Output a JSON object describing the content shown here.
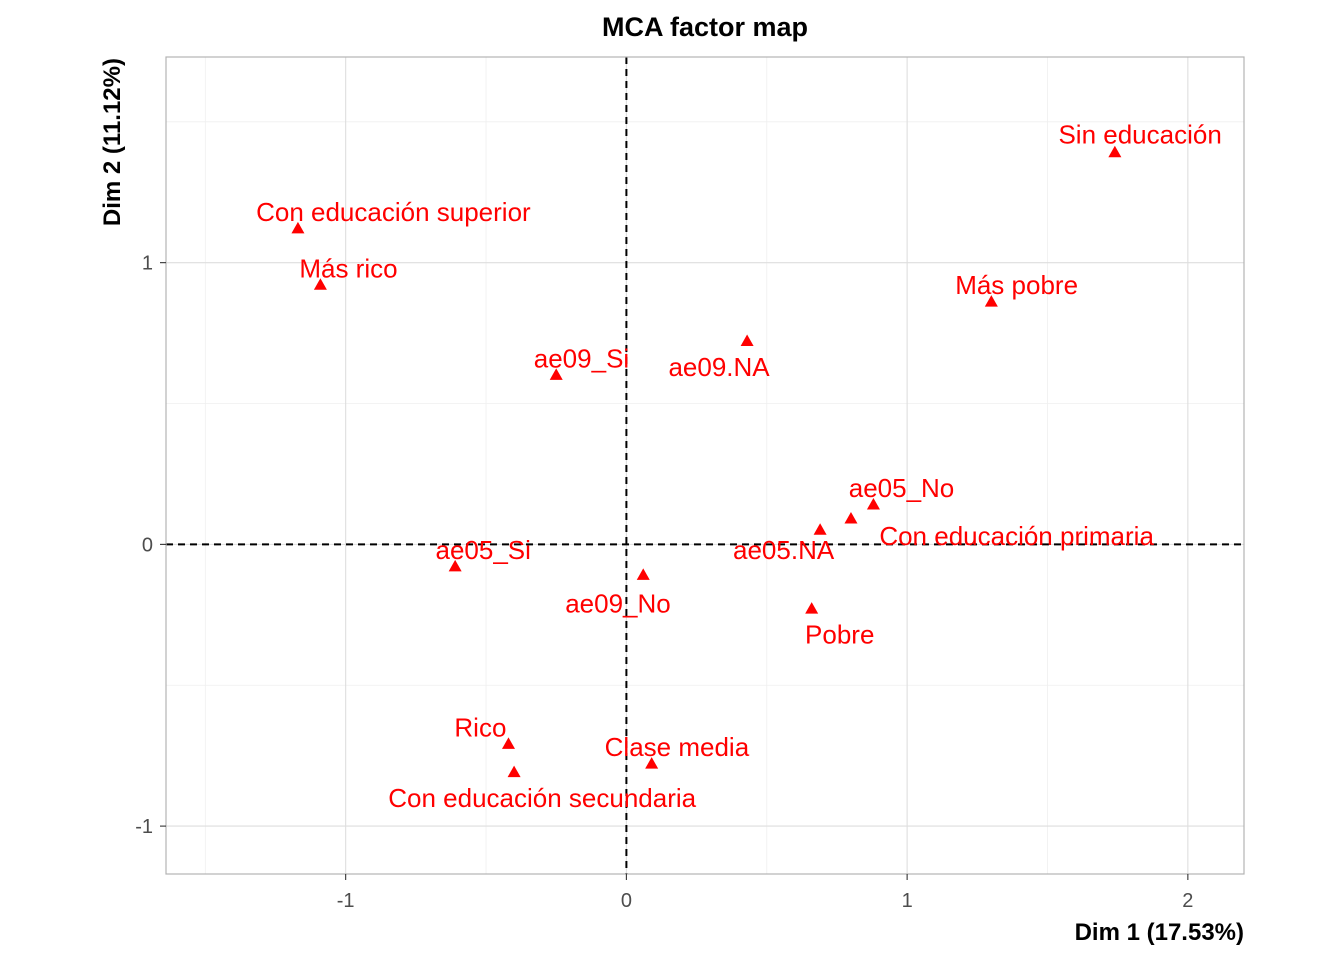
{
  "chart_data": {
    "type": "scatter",
    "title": "MCA factor map",
    "xlabel": "Dim 1 (17.53%)",
    "ylabel": "Dim 2 (11.12%)",
    "xlim": [
      -1.64,
      2.2
    ],
    "ylim": [
      -1.17,
      1.73
    ],
    "x_ticks": [
      -1,
      0,
      1,
      2
    ],
    "y_ticks": [
      -1,
      0,
      1
    ],
    "grid": true,
    "reference_lines": {
      "x": 0,
      "y": 0,
      "style": "dashed"
    },
    "color": "#ff0000",
    "marker": "triangle",
    "points": [
      {
        "label": "Sin educación",
        "x": 1.74,
        "y": 1.39,
        "label_dx": 0.09,
        "label_dy": 0.065
      },
      {
        "label": "Con educación superior",
        "x": -1.17,
        "y": 1.12,
        "label_dx": 0.34,
        "label_dy": 0.06
      },
      {
        "label": "Más rico",
        "x": -1.09,
        "y": 0.92,
        "label_dx": 0.1,
        "label_dy": 0.06
      },
      {
        "label": "Más pobre",
        "x": 1.3,
        "y": 0.86,
        "label_dx": 0.09,
        "label_dy": 0.06
      },
      {
        "label": "ae09.NA",
        "x": 0.43,
        "y": 0.72,
        "label_dx": -0.1,
        "label_dy": -0.09
      },
      {
        "label": "ae09_Si",
        "x": -0.25,
        "y": 0.6,
        "label_dx": 0.09,
        "label_dy": 0.06
      },
      {
        "label": "ae05_No",
        "x": 0.88,
        "y": 0.14,
        "label_dx": 0.1,
        "label_dy": 0.06
      },
      {
        "label": "Con educación primaria",
        "x": 0.8,
        "y": 0.09,
        "label_dx": 0.59,
        "label_dy": -0.06
      },
      {
        "label": "ae05.NA",
        "x": 0.69,
        "y": 0.05,
        "label_dx": -0.13,
        "label_dy": -0.07
      },
      {
        "label": "ae05_Si",
        "x": -0.61,
        "y": -0.08,
        "label_dx": 0.1,
        "label_dy": 0.06
      },
      {
        "label": "ae09_No",
        "x": 0.06,
        "y": -0.11,
        "label_dx": -0.09,
        "label_dy": -0.1
      },
      {
        "label": "Pobre",
        "x": 0.66,
        "y": -0.23,
        "label_dx": 0.1,
        "label_dy": -0.09
      },
      {
        "label": "Rico",
        "x": -0.42,
        "y": -0.71,
        "label_dx": -0.1,
        "label_dy": 0.06
      },
      {
        "label": "Clase media",
        "x": 0.09,
        "y": -0.78,
        "label_dx": 0.09,
        "label_dy": 0.06
      },
      {
        "label": "Con educación secundaria",
        "x": -0.4,
        "y": -0.81,
        "label_dx": 0.1,
        "label_dy": -0.09
      }
    ]
  }
}
